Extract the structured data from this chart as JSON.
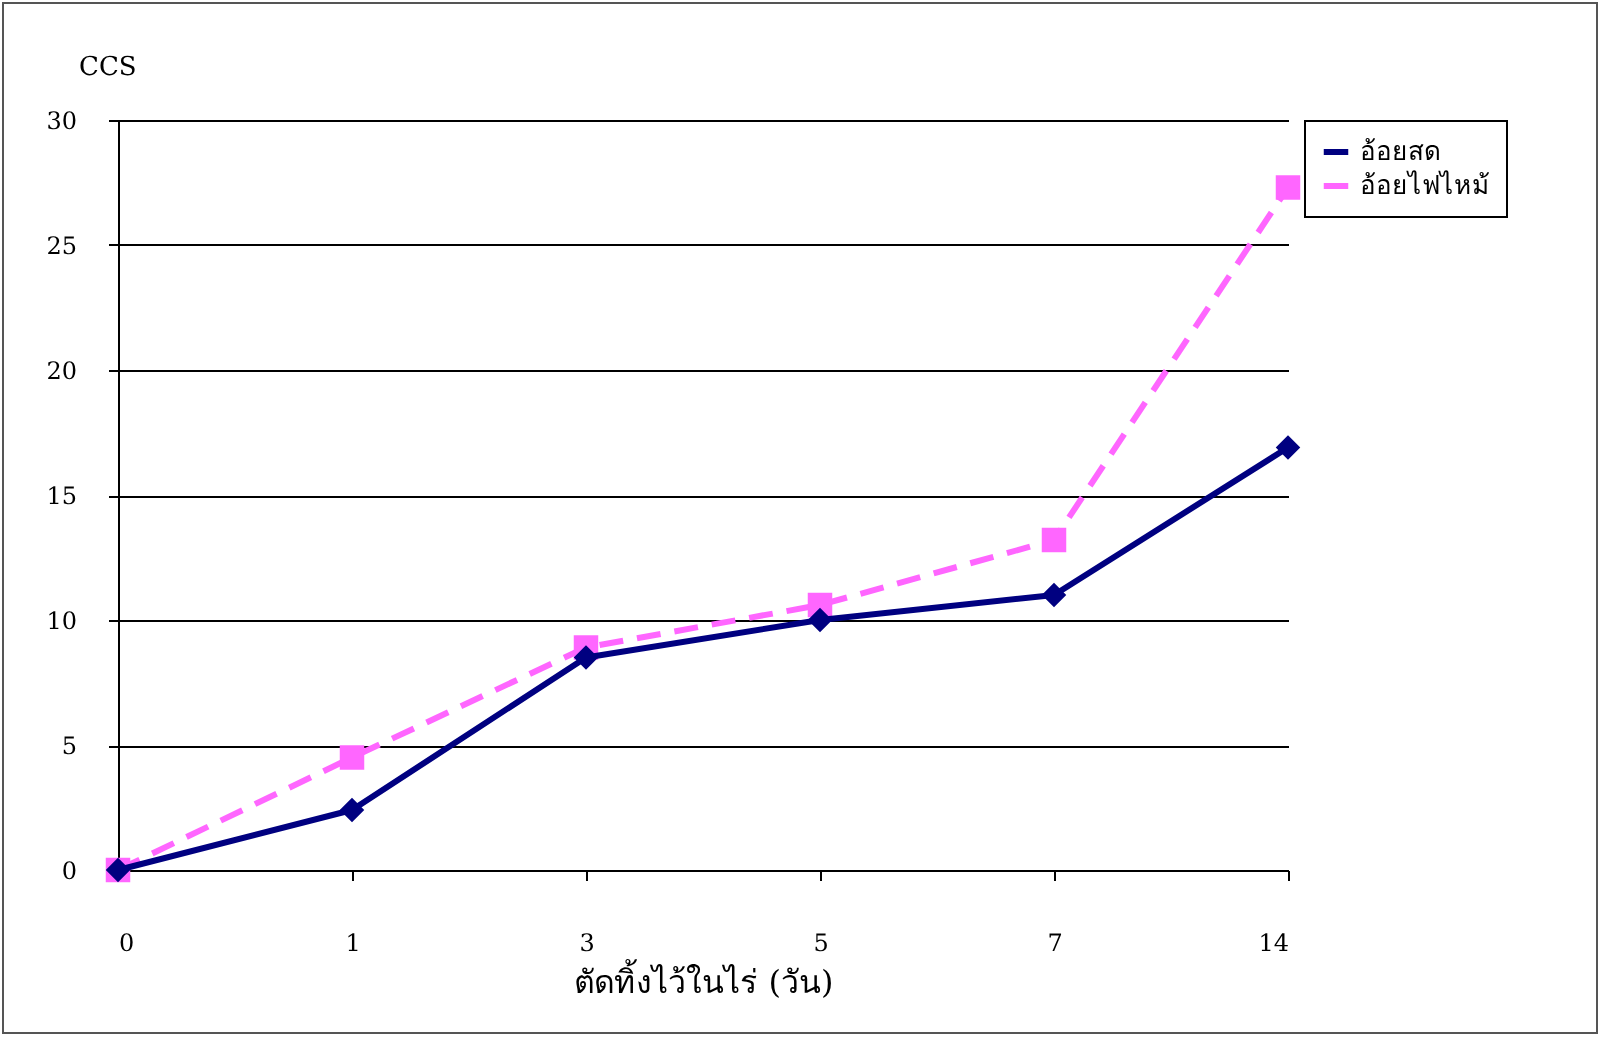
{
  "chart_data": {
    "type": "line",
    "ylabel": "CCS",
    "xlabel": "ตัดทิ้งไว้ในไร่ (วัน)",
    "categories": [
      "0",
      "1",
      "3",
      "5",
      "7",
      "14"
    ],
    "series": [
      {
        "name": "อ้อยสด",
        "color": "#000080",
        "marker": "diamond",
        "line_style": "solid",
        "values": [
          0,
          2.4,
          8.5,
          10,
          11,
          16.9
        ]
      },
      {
        "name": "อ้อยไฟไหม้",
        "color": "#ff66ff",
        "marker": "square",
        "line_style": "dashed",
        "values": [
          0,
          4.5,
          8.9,
          10.6,
          13.2,
          27.3
        ]
      }
    ],
    "ylim": [
      0,
      30
    ],
    "yticks": [
      0,
      5,
      10,
      15,
      20,
      25,
      30
    ],
    "grid": "y",
    "legend": "right"
  }
}
